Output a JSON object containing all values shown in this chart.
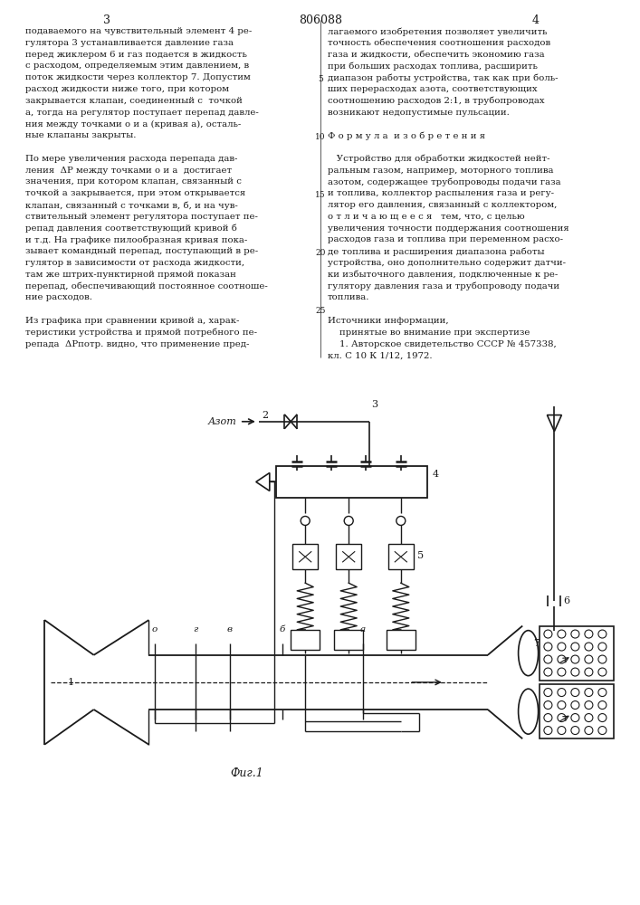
{
  "page_width": 7.07,
  "page_height": 10.0,
  "bg_color": "#ffffff",
  "line_color": "#1a1a1a",
  "text_color": "#1a1a1a",
  "page_number_left": "3",
  "page_number_center": "806088",
  "page_number_right": "4",
  "col1_text": [
    "подаваемого на чувствительный элемент 4 ре-",
    "гулятора 3 устанавливается давление газа",
    "перед жиклером 6 и газ подается в жидкость",
    "с расходом, определяемым этим давлением, в",
    "поток жидкости через коллектор 7. Допустим",
    "расход жидкости ниже того, при котором",
    "закрывается клапан, соединенный с  точкой",
    "а, тогда на регулятор поступает перепад давле-",
    "ния между точками о и а (кривая а), осталь-",
    "ные клапаны закрыты.",
    "",
    "По мере увеличения расхода перепада дав-",
    "ления  ΔP между точками о и а  достигает",
    "значения, при котором клапан, связанный с",
    "точкой а закрывается, при этом открывается",
    "клапан, связанный с точками в, б, и на чув-",
    "ствительный элемент регулятора поступает пе-",
    "репад давления соответствующий кривой б",
    "и т.д. На графике пилообразная кривая пока-",
    "зывает командный перепад, поступающий в ре-",
    "гулятор в зависимости от расхода жидкости,",
    "там же штрих-пунктирной прямой показан",
    "перепад, обеспечивающий постоянное соотноше-",
    "ние расходов.",
    "",
    "Из графика при сравнении кривой а, харак-",
    "теристики устройства и прямой потребного пе-",
    "репада  ΔPпотр. видно, что применение пред-"
  ],
  "col2_text": [
    "лагаемого изобретения позволяет увеличить",
    "точность обеспечения соотношения расходов",
    "газа и жидкости, обеспечить экономию газа",
    "при больших расходах топлива, расширить",
    "диапазон работы устройства, так как при боль-",
    "ших перерасходах азота, соответствующих",
    "соотношению расходов 2:1, в трубопроводах",
    "возникают недопустимые пульсации.",
    "",
    "Ф о р м у л а  и з о б р е т е н и я",
    "",
    "   Устройство для обработки жидкостей нейт-",
    "ральным газом, например, моторного топлива",
    "азотом, содержащее трубопроводы подачи газа",
    "и топлива, коллектор распыления газа и регу-",
    "лятор его давления, связанный с коллектором,",
    "о т л и ч а ю щ е е с я   тем, что, с целью",
    "увеличения точности поддержания соотношения",
    "расходов газа и топлива при переменном расхо-",
    "де топлива и расширения диапазона работы",
    "устройства, оно дополнительно содержит датчи-",
    "ки избыточного давления, подключенные к ре-",
    "гулятору давления газа и трубопроводу подачи",
    "топлива.",
    "",
    "Источники информации,",
    "    принятые во внимание при экспертизе",
    "    1. Авторское свидетельство СССР № 457338,",
    "кл. С 10 К 1/12, 1972."
  ],
  "line_numbers": [
    5,
    10,
    15,
    20,
    25
  ],
  "fig_caption": "Фиг.1"
}
